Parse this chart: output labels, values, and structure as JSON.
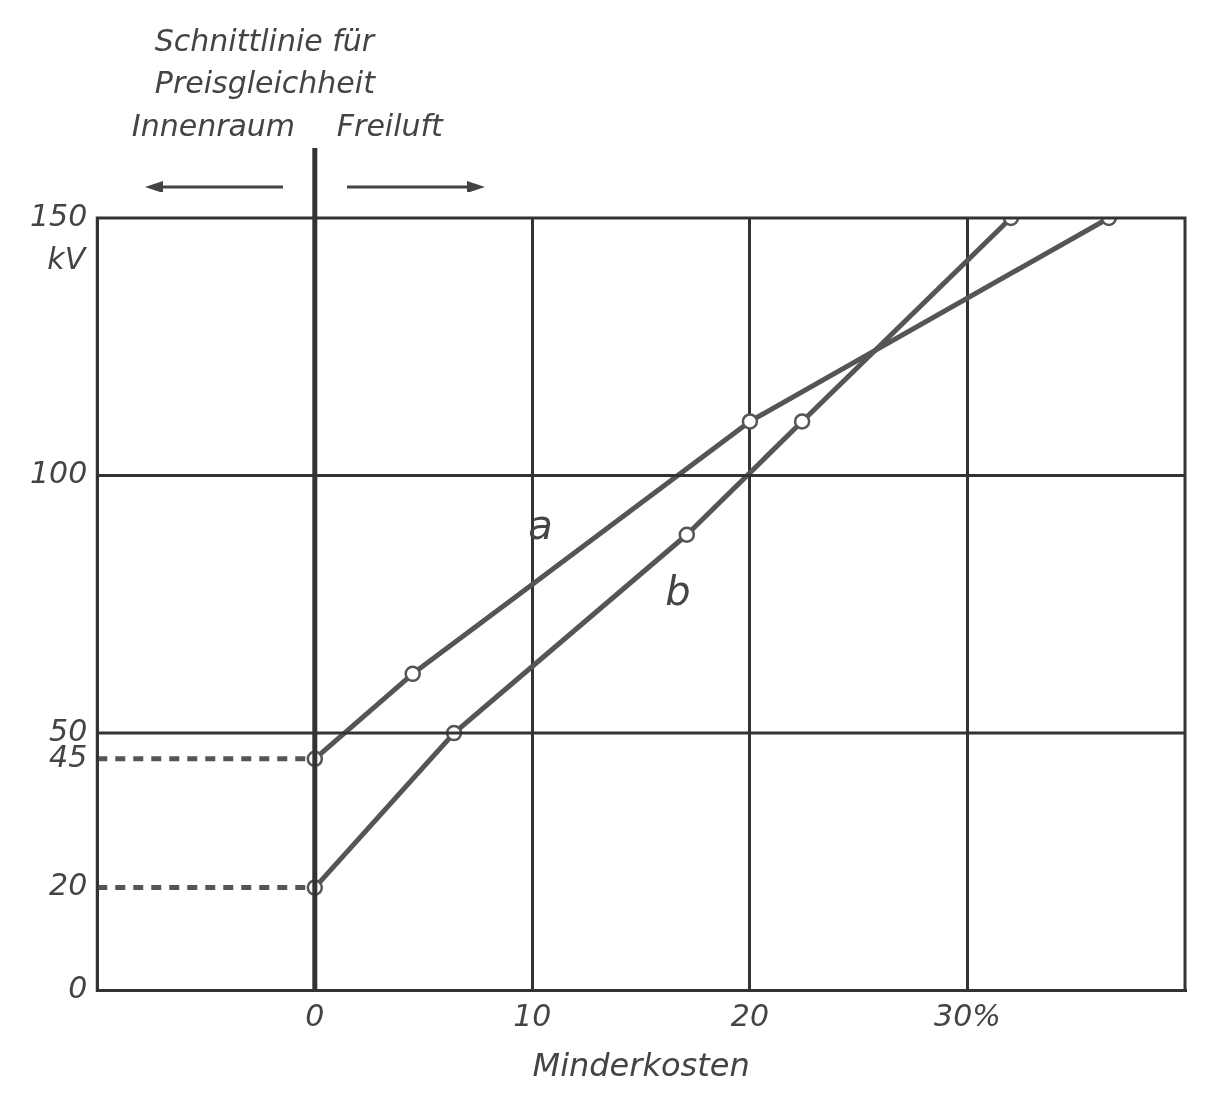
{
  "chart_data": {
    "type": "line",
    "xlabel": "Minderkosten",
    "ylabel": "kV",
    "xlim": [
      -10,
      40
    ],
    "xticks": [
      0,
      10,
      20,
      {
        "value": 30,
        "label": "30%"
      }
    ],
    "ylim": [
      0,
      150
    ],
    "yticks": [
      0,
      20,
      45,
      50,
      100,
      150
    ],
    "grid": "x",
    "marker": "circle",
    "line_style": "solid",
    "legend": false,
    "series": [
      {
        "name": "a",
        "color": "#555555",
        "x": [
          0,
          4.5,
          20,
          36.5
        ],
        "values": [
          45,
          61.5,
          110.5,
          150
        ]
      },
      {
        "name": "b",
        "color": "#555555",
        "x": [
          0,
          6.4,
          17.1,
          22.4,
          32
        ],
        "values": [
          20,
          50,
          88.5,
          110.5,
          150
        ]
      },
      {
        "color": "#555555",
        "x": [
          -10,
          0
        ],
        "values": [
          45,
          45
        ],
        "marker": "none",
        "line_style": "dashed"
      },
      {
        "color": "#555555",
        "x": [
          -10,
          0
        ],
        "values": [
          20,
          20
        ],
        "marker": "none",
        "line_style": "dashed"
      }
    ],
    "ref_lines": [
      {
        "axis": "x",
        "value": 0,
        "label": "Schnittlinie für Preisgleichheit"
      },
      {
        "axis": "y",
        "value": 50
      },
      {
        "axis": "y",
        "value": 100
      }
    ],
    "annotations": [
      "Innenraum",
      "Freiluft"
    ]
  }
}
